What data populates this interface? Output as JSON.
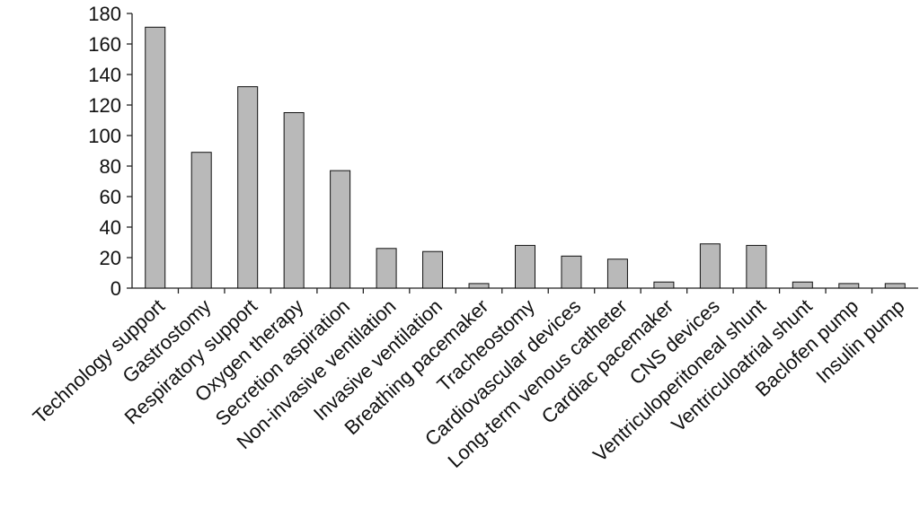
{
  "chart_data": {
    "type": "bar",
    "categories": [
      "Technology support",
      "Gastrostomy",
      "Respiratory support",
      "Oxygen therapy",
      "Secretion aspiration",
      "Non-invasive ventilation",
      "Invasive ventilation",
      "Breathing pacemaker",
      "Tracheostomy",
      "Cardiovascular devices",
      "Long-term venous catheter",
      "Cardiac pacemaker",
      "CNS devices",
      "Ventriculoperitoneal shunt",
      "Ventriculoatrial shunt",
      "Baclofen pump",
      "Insulin pump"
    ],
    "values": [
      171,
      89,
      132,
      115,
      77,
      26,
      24,
      3,
      28,
      21,
      19,
      4,
      29,
      28,
      4,
      3,
      3
    ],
    "color": "#b9b9b9",
    "ylim": [
      0,
      180
    ],
    "yticks": [
      0,
      20,
      40,
      60,
      80,
      100,
      120,
      140,
      160,
      180
    ],
    "grid": false
  }
}
